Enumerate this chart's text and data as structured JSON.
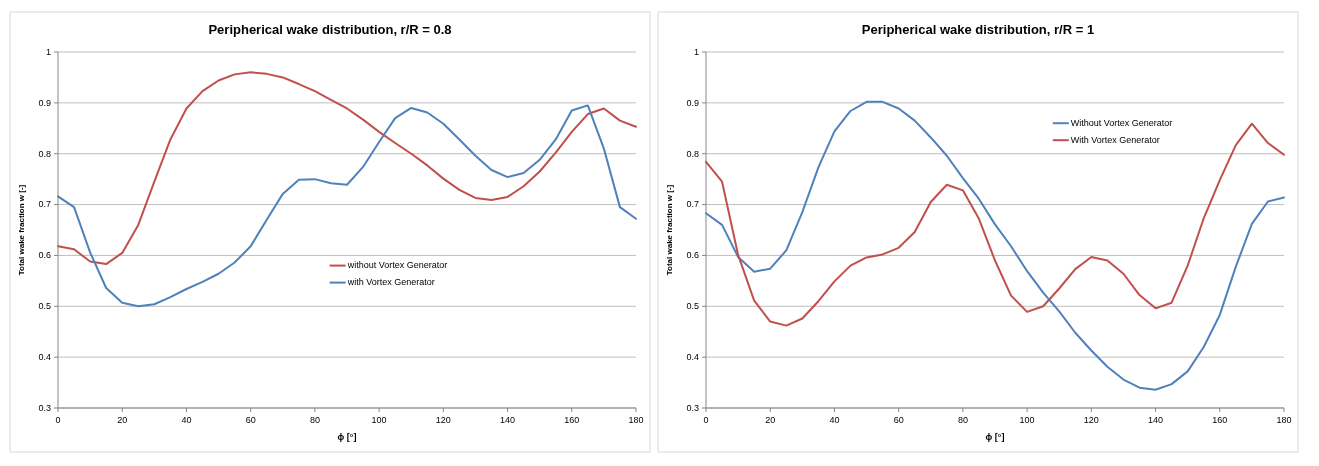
{
  "chart_data": [
    {
      "type": "line",
      "title": "Peripherical wake distribution, r/R = 0.8",
      "xlabel": "ϕ [°]",
      "ylabel": "Total wake fraction w [-]",
      "x": [
        0,
        5,
        10,
        15,
        20,
        25,
        30,
        35,
        40,
        45,
        50,
        55,
        60,
        65,
        70,
        75,
        80,
        85,
        90,
        95,
        100,
        105,
        110,
        115,
        120,
        125,
        130,
        135,
        140,
        145,
        150,
        155,
        160,
        165,
        170,
        175,
        180
      ],
      "series": [
        {
          "name": "without Vortex Generator",
          "color": "#c0504d",
          "values": [
            0.618,
            0.612,
            0.588,
            0.583,
            0.605,
            0.66,
            0.745,
            0.828,
            0.889,
            0.923,
            0.944,
            0.956,
            0.96,
            0.957,
            0.95,
            0.937,
            0.923,
            0.906,
            0.889,
            0.867,
            0.843,
            0.821,
            0.8,
            0.777,
            0.751,
            0.729,
            0.713,
            0.709,
            0.715,
            0.736,
            0.765,
            0.802,
            0.843,
            0.878,
            0.889,
            0.865,
            0.853
          ]
        },
        {
          "name": "with Vortex Generator",
          "color": "#4f81bd",
          "values": [
            0.716,
            0.695,
            0.606,
            0.536,
            0.507,
            0.5,
            0.504,
            0.518,
            0.534,
            0.548,
            0.564,
            0.586,
            0.618,
            0.67,
            0.721,
            0.749,
            0.75,
            0.742,
            0.739,
            0.774,
            0.823,
            0.87,
            0.89,
            0.881,
            0.859,
            0.828,
            0.796,
            0.768,
            0.754,
            0.762,
            0.788,
            0.828,
            0.885,
            0.895,
            0.81,
            0.695,
            0.672
          ]
        }
      ],
      "xlim": [
        0,
        180
      ],
      "xticks": [
        0,
        20,
        40,
        60,
        80,
        100,
        120,
        140,
        160,
        180
      ],
      "ylim": [
        0.3,
        1
      ],
      "yticks": [
        0.3,
        0.4,
        0.5,
        0.6,
        0.7,
        0.8,
        0.9,
        1
      ],
      "grid": "y",
      "legend": "center",
      "marker": "none",
      "line_style": "solid"
    },
    {
      "type": "line",
      "title": "Peripherical wake distribution, r/R = 1",
      "xlabel": "ϕ [°]",
      "ylabel": "Total wake fraction w [-]",
      "x": [
        0,
        5,
        10,
        15,
        20,
        25,
        30,
        35,
        40,
        45,
        50,
        55,
        60,
        65,
        70,
        75,
        80,
        85,
        90,
        95,
        100,
        105,
        110,
        115,
        120,
        125,
        130,
        135,
        140,
        145,
        150,
        155,
        160,
        165,
        170,
        175,
        180
      ],
      "series": [
        {
          "name": "Without Vortex Generator",
          "color": "#4f81bd",
          "values": [
            0.683,
            0.66,
            0.597,
            0.568,
            0.574,
            0.61,
            0.685,
            0.773,
            0.844,
            0.884,
            0.902,
            0.902,
            0.889,
            0.865,
            0.832,
            0.796,
            0.752,
            0.711,
            0.661,
            0.618,
            0.569,
            0.527,
            0.49,
            0.448,
            0.413,
            0.381,
            0.356,
            0.34,
            0.336,
            0.347,
            0.372,
            0.42,
            0.483,
            0.578,
            0.662,
            0.706,
            0.714
          ]
        },
        {
          "name": "With Vortex Generator",
          "color": "#c0504d",
          "values": [
            0.784,
            0.745,
            0.601,
            0.511,
            0.47,
            0.462,
            0.476,
            0.51,
            0.549,
            0.58,
            0.596,
            0.602,
            0.615,
            0.646,
            0.705,
            0.739,
            0.728,
            0.672,
            0.59,
            0.521,
            0.489,
            0.5,
            0.535,
            0.573,
            0.597,
            0.59,
            0.564,
            0.522,
            0.496,
            0.507,
            0.58,
            0.673,
            0.748,
            0.817,
            0.859,
            0.821,
            0.798
          ]
        }
      ],
      "xlim": [
        0,
        180
      ],
      "xticks": [
        0,
        20,
        40,
        60,
        80,
        100,
        120,
        140,
        160,
        180
      ],
      "ylim": [
        0.3,
        1
      ],
      "yticks": [
        0.3,
        0.4,
        0.5,
        0.6,
        0.7,
        0.8,
        0.9,
        1
      ],
      "grid": "y",
      "legend": "top right",
      "marker": "none",
      "line_style": "solid"
    }
  ]
}
